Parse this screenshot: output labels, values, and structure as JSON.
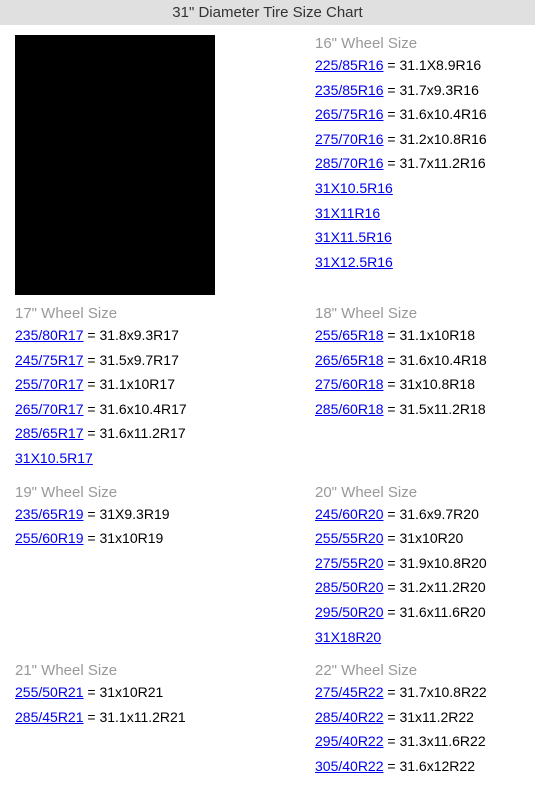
{
  "header_title": "31\" Diameter Tire Size Chart",
  "colors": {
    "header_bg": "#e0e0e0",
    "link_color": "#0000ee",
    "section_title_color": "#999999",
    "text_color": "#000000",
    "black_box": "#000000"
  },
  "sections": [
    {
      "title": "16\" Wheel Size",
      "items": [
        {
          "link": "225/85R16",
          "equals": " = 31.1X8.9R16"
        },
        {
          "link": "235/85R16",
          "equals": " = 31.7x9.3R16"
        },
        {
          "link": "265/75R16",
          "equals": " = 31.6x10.4R16"
        },
        {
          "link": "275/70R16",
          "equals": " = 31.2x10.8R16"
        },
        {
          "link": "285/70R16",
          "equals": " = 31.7x11.2R16"
        },
        {
          "link": "31X10.5R16",
          "equals": ""
        },
        {
          "link": "31X11R16",
          "equals": ""
        },
        {
          "link": "31X11.5R16",
          "equals": ""
        },
        {
          "link": "31X12.5R16",
          "equals": ""
        }
      ]
    },
    {
      "title": "17\" Wheel Size",
      "items": [
        {
          "link": "235/80R17",
          "equals": " = 31.8x9.3R17"
        },
        {
          "link": "245/75R17",
          "equals": " = 31.5x9.7R17"
        },
        {
          "link": "255/70R17",
          "equals": " = 31.1x10R17"
        },
        {
          "link": "265/70R17",
          "equals": " = 31.6x10.4R17"
        },
        {
          "link": "285/65R17",
          "equals": " = 31.6x11.2R17"
        },
        {
          "link": "31X10.5R17",
          "equals": ""
        }
      ]
    },
    {
      "title": "18\" Wheel Size",
      "items": [
        {
          "link": "255/65R18",
          "equals": " = 31.1x10R18"
        },
        {
          "link": "265/65R18",
          "equals": " = 31.6x10.4R18"
        },
        {
          "link": "275/60R18",
          "equals": " = 31x10.8R18"
        },
        {
          "link": "285/60R18",
          "equals": " = 31.5x11.2R18"
        }
      ]
    },
    {
      "title": "19\" Wheel Size",
      "items": [
        {
          "link": "235/65R19",
          "equals": " = 31X9.3R19"
        },
        {
          "link": "255/60R19",
          "equals": " = 31x10R19"
        }
      ]
    },
    {
      "title": "20\" Wheel Size",
      "items": [
        {
          "link": "245/60R20",
          "equals": " = 31.6x9.7R20"
        },
        {
          "link": "255/55R20",
          "equals": " = 31x10R20"
        },
        {
          "link": "275/55R20",
          "equals": " = 31.9x10.8R20"
        },
        {
          "link": "285/50R20",
          "equals": " = 31.2x11.2R20"
        },
        {
          "link": "295/50R20",
          "equals": " = 31.6x11.6R20"
        },
        {
          "link": "31X18R20",
          "equals": ""
        }
      ]
    },
    {
      "title": "21\" Wheel Size",
      "items": [
        {
          "link": "255/50R21",
          "equals": " = 31x10R21"
        },
        {
          "link": "285/45R21",
          "equals": " = 31.1x11.2R21"
        }
      ]
    },
    {
      "title": "22\" Wheel Size",
      "items": [
        {
          "link": "275/45R22",
          "equals": " = 31.7x10.8R22"
        },
        {
          "link": "285/40R22",
          "equals": " = 31x11.2R22"
        },
        {
          "link": "295/40R22",
          "equals": " = 31.3x11.6R22"
        },
        {
          "link": "305/40R22",
          "equals": " = 31.6x12R22"
        }
      ]
    }
  ]
}
